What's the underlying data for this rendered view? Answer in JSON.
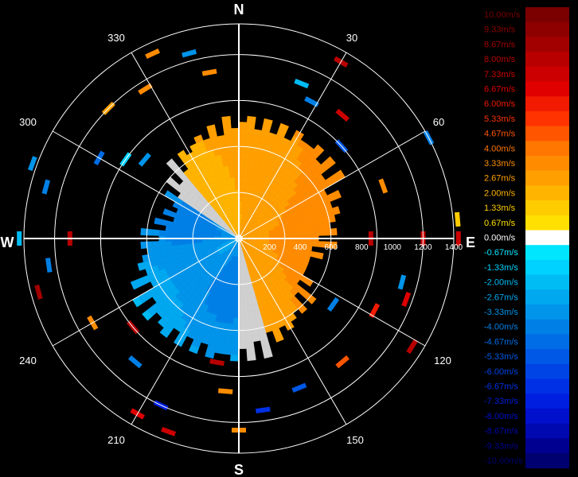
{
  "chart_data": {
    "type": "heatmap",
    "subtype": "polar-ppi-radial-velocity",
    "units": "m/s",
    "cardinals": [
      "N",
      "E",
      "S",
      "W"
    ],
    "angle_labels": [
      "30",
      "60",
      "120",
      "150",
      "210",
      "240",
      "300",
      "330"
    ],
    "range_tick_labels": [
      "200",
      "400",
      "600",
      "800",
      "1000",
      "1200",
      "1400"
    ],
    "range_max": 1400,
    "ring_ranges": [
      300,
      600,
      900,
      1200,
      1400
    ],
    "velocity_range": [
      -10,
      10
    ],
    "colorbar": {
      "placement": "right",
      "labels": [
        "10.00m/s",
        "9.33m/s",
        "8.67m/s",
        "8.00m/s",
        "7.33m/s",
        "6.67m/s",
        "6.00m/s",
        "5.33m/s",
        "4.67m/s",
        "4.00m/s",
        "3.33m/s",
        "2.67m/s",
        "2.00m/s",
        "1.33m/s",
        "0.67m/s",
        "0.00m/s",
        "-0.67m/s",
        "-1.33m/s",
        "-2.00m/s",
        "-2.67m/s",
        "-3.33m/s",
        "-4.00m/s",
        "-4.67m/s",
        "-5.33m/s",
        "-6.00m/s",
        "-6.67m/s",
        "-7.33m/s",
        "-8.00m/s",
        "-8.67m/s",
        "-9.33m/s",
        "-10.00m/s"
      ],
      "colors": [
        "#7a0000",
        "#8e0000",
        "#a20000",
        "#b80000",
        "#cc0000",
        "#e00000",
        "#f21a00",
        "#ff3300",
        "#ff5500",
        "#ff7700",
        "#ff8c00",
        "#ffa000",
        "#ffb400",
        "#ffcc00",
        "#ffe000",
        "#ffffff",
        "#00e6ff",
        "#00d2ff",
        "#00bcf5",
        "#00a8f0",
        "#0094ea",
        "#0080e6",
        "#006ce6",
        "#0058e6",
        "#0044e6",
        "#0030e6",
        "#001ee0",
        "#0010cc",
        "#0008b0",
        "#000090",
        "#000070"
      ]
    },
    "main_echo": {
      "max_range": 800,
      "approach_region": {
        "azimuth_from": 180,
        "azimuth_to": 300,
        "velocity": -3.0
      },
      "recede_region": {
        "azimuth_from": 320,
        "azimuth_to": 160,
        "velocity": 2.2
      },
      "zero_line_color": "#d0d0d0"
    },
    "scattered_gates": [
      {
        "az": 335,
        "r": 1330,
        "v": 3.3
      },
      {
        "az": 345,
        "r": 1250,
        "v": -3.3
      },
      {
        "az": 350,
        "r": 1100,
        "v": 3.3
      },
      {
        "az": 328,
        "r": 1150,
        "v": 3.3
      },
      {
        "az": 30,
        "r": 1330,
        "v": 8.0
      },
      {
        "az": 22,
        "r": 1090,
        "v": -2.0
      },
      {
        "az": 28,
        "r": 1010,
        "v": -4.0
      },
      {
        "az": 40,
        "r": 1050,
        "v": 7.3
      },
      {
        "az": 48,
        "r": 900,
        "v": -5.3
      },
      {
        "az": 62,
        "r": 1400,
        "v": -4.0
      },
      {
        "az": 85,
        "r": 1430,
        "v": 1.3
      },
      {
        "az": 90,
        "r": 1430,
        "v": 7.3
      },
      {
        "az": 90,
        "r": 1200,
        "v": 7.3
      },
      {
        "az": 90,
        "r": 860,
        "v": 8.0
      },
      {
        "az": 70,
        "r": 1000,
        "v": 3.3
      },
      {
        "az": 110,
        "r": 1160,
        "v": 6.7
      },
      {
        "az": 118,
        "r": 1000,
        "v": 6.0
      },
      {
        "az": 105,
        "r": 1100,
        "v": -3.3
      },
      {
        "az": 122,
        "r": 1330,
        "v": 8.0
      },
      {
        "az": 140,
        "r": 1050,
        "v": 4.7
      },
      {
        "az": 125,
        "r": 750,
        "v": -4.0
      },
      {
        "az": 158,
        "r": 1050,
        "v": -5.3
      },
      {
        "az": 172,
        "r": 1130,
        "v": -6.7
      },
      {
        "az": 180,
        "r": 1250,
        "v": 3.3
      },
      {
        "az": 185,
        "r": 1000,
        "v": 3.3
      },
      {
        "az": 190,
        "r": 820,
        "v": 8.0
      },
      {
        "az": 200,
        "r": 1340,
        "v": 7.3
      },
      {
        "az": 205,
        "r": 1200,
        "v": -7.3
      },
      {
        "az": 210,
        "r": 1320,
        "v": 6.7
      },
      {
        "az": 220,
        "r": 1050,
        "v": -4.0
      },
      {
        "az": 230,
        "r": 900,
        "v": 8.0
      },
      {
        "az": 240,
        "r": 1100,
        "v": 3.3
      },
      {
        "az": 255,
        "r": 1350,
        "v": 8.7
      },
      {
        "az": 262,
        "r": 1250,
        "v": -4.0
      },
      {
        "az": 270,
        "r": 1430,
        "v": -2.0
      },
      {
        "az": 270,
        "r": 1100,
        "v": 8.0
      },
      {
        "az": 285,
        "r": 1300,
        "v": -4.0
      },
      {
        "az": 290,
        "r": 1430,
        "v": -3.3
      },
      {
        "az": 300,
        "r": 1050,
        "v": -4.7
      },
      {
        "az": 305,
        "r": 900,
        "v": -1.3
      },
      {
        "az": 315,
        "r": 1200,
        "v": 2.7
      },
      {
        "az": 310,
        "r": 800,
        "v": -3.3
      }
    ]
  }
}
